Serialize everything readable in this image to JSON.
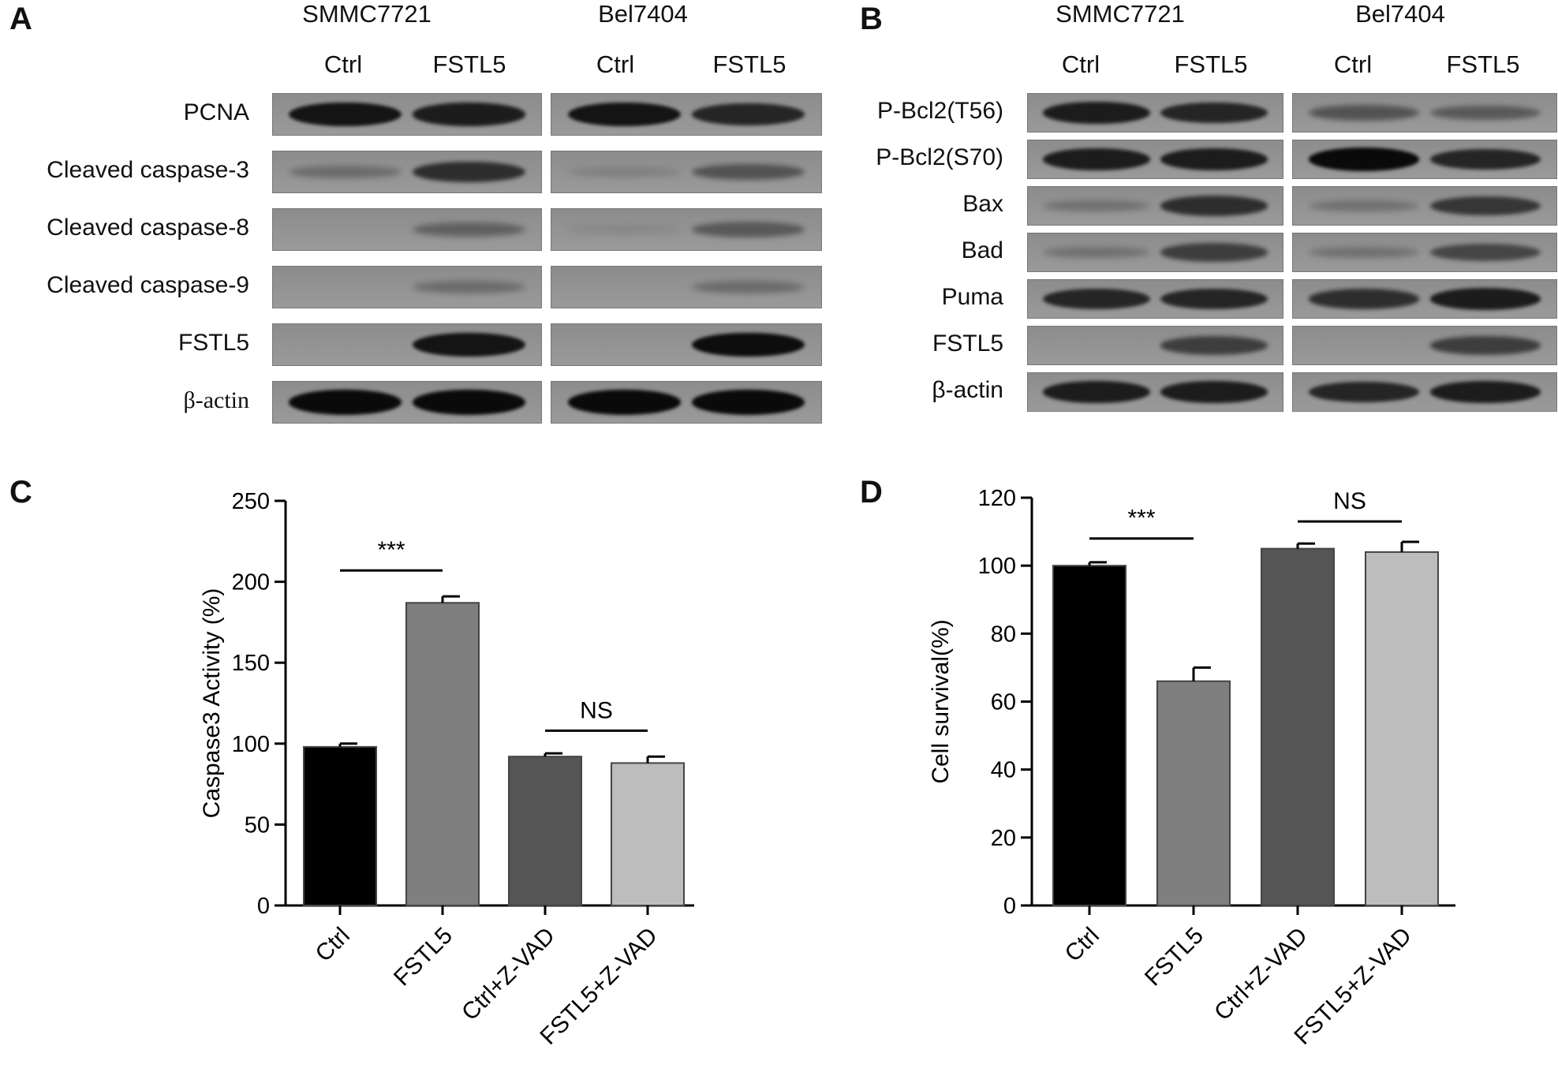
{
  "panel_a": {
    "letter": "A",
    "cell_lines": [
      "SMMC7721",
      "Bel7404"
    ],
    "lanes": [
      "Ctrl",
      "FSTL5",
      "Ctrl",
      "FSTL5"
    ],
    "rows": [
      {
        "label": "PCNA",
        "intensity": [
          0.95,
          0.9,
          0.95,
          0.85
        ]
      },
      {
        "label": "Cleaved caspase-3",
        "intensity": [
          0.35,
          0.8,
          0.15,
          0.55
        ]
      },
      {
        "label": "Cleaved caspase-8",
        "intensity": [
          0.0,
          0.45,
          0.05,
          0.5
        ]
      },
      {
        "label": "Cleaved caspase-9",
        "intensity": [
          0.0,
          0.35,
          0.0,
          0.35
        ]
      },
      {
        "label": "FSTL5",
        "intensity": [
          0.0,
          0.95,
          0.0,
          0.98
        ]
      },
      {
        "label": "β-actin",
        "intensity": [
          1.0,
          1.0,
          1.0,
          1.0
        ]
      }
    ]
  },
  "panel_b": {
    "letter": "B",
    "cell_lines": [
      "SMMC7721",
      "Bel7404"
    ],
    "lanes": [
      "Ctrl",
      "FSTL5",
      "Ctrl",
      "FSTL5"
    ],
    "rows": [
      {
        "label": "P-Bcl2(T56)",
        "intensity": [
          0.9,
          0.85,
          0.55,
          0.5
        ]
      },
      {
        "label": "P-Bcl2(S70)",
        "intensity": [
          0.9,
          0.9,
          1.0,
          0.85
        ]
      },
      {
        "label": "Bax",
        "intensity": [
          0.3,
          0.8,
          0.3,
          0.75
        ]
      },
      {
        "label": "Bad",
        "intensity": [
          0.3,
          0.7,
          0.3,
          0.65
        ]
      },
      {
        "label": "Puma",
        "intensity": [
          0.85,
          0.85,
          0.8,
          0.9
        ]
      },
      {
        "label": "FSTL5",
        "intensity": [
          0.0,
          0.7,
          0.0,
          0.7
        ]
      },
      {
        "label": "β-actin",
        "intensity": [
          0.9,
          0.9,
          0.85,
          0.9
        ]
      }
    ]
  },
  "colors": {
    "ctrl": "#000000",
    "fstl5": "#7f7f7f",
    "ctrl_zvad": "#555555",
    "fstl5_zvad": "#bdbdbd"
  },
  "chart_data": [
    {
      "panel": "C",
      "type": "bar",
      "categories": [
        "Ctrl",
        "FSTL5",
        "Ctrl+Z-VAD",
        "FSTL5+Z-VAD"
      ],
      "values": [
        98,
        187,
        92,
        88
      ],
      "errors": [
        2,
        4,
        2,
        4
      ],
      "ylabel": "Caspase3 Activity  (%)",
      "ylim": [
        0,
        250
      ],
      "yticks": [
        0,
        50,
        100,
        150,
        200,
        250
      ],
      "annotations": [
        {
          "text": "***",
          "from": 0,
          "to": 1,
          "y": 207
        },
        {
          "text": "NS",
          "from": 2,
          "to": 3,
          "y": 108
        }
      ]
    },
    {
      "panel": "D",
      "type": "bar",
      "categories": [
        "Ctrl",
        "FSTL5",
        "Ctrl+Z-VAD",
        "FSTL5+Z-VAD"
      ],
      "values": [
        100,
        66,
        105,
        104
      ],
      "errors": [
        1,
        4,
        1.5,
        3
      ],
      "ylabel": "Cell survival(%)",
      "ylim": [
        0,
        120
      ],
      "yticks": [
        0,
        20,
        40,
        60,
        80,
        100,
        120
      ],
      "annotations": [
        {
          "text": "***",
          "from": 0,
          "to": 1,
          "y": 108
        },
        {
          "text": "NS",
          "from": 2,
          "to": 3,
          "y": 113
        }
      ]
    }
  ]
}
